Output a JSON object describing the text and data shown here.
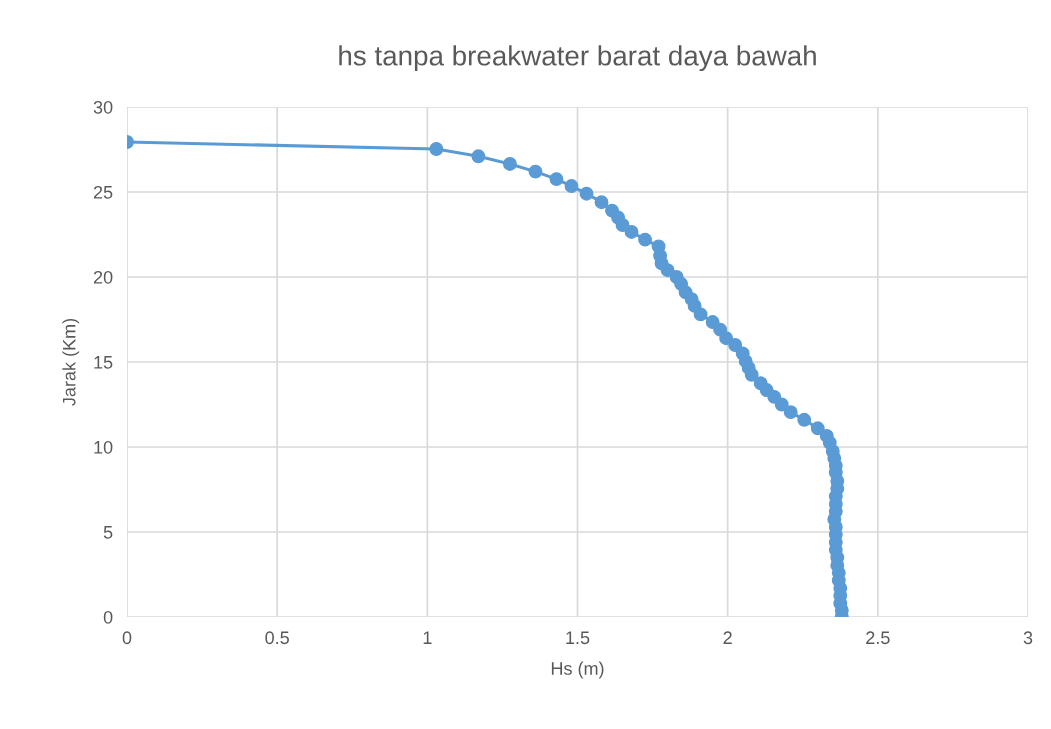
{
  "chart_data": {
    "type": "line",
    "title": "hs tanpa breakwater barat daya bawah",
    "xlabel": "Hs (m)",
    "ylabel": "Jarak (Km)",
    "xlim": [
      0,
      3
    ],
    "xticks": [
      0,
      0.5,
      1,
      1.5,
      2,
      2.5,
      3
    ],
    "ylim": [
      0,
      30
    ],
    "yticks": [
      0,
      5,
      10,
      15,
      20,
      25,
      30
    ],
    "grid": true,
    "marker": "circle",
    "line_style": "solid",
    "series": [
      {
        "color": "#5b9bd5",
        "x": [
          0,
          1.03,
          1.17,
          1.275,
          1.36,
          1.43,
          1.48,
          1.53,
          1.58,
          1.615,
          1.635,
          1.65,
          1.68,
          1.725,
          1.77,
          1.775,
          1.78,
          1.8,
          1.83,
          1.845,
          1.86,
          1.88,
          1.89,
          1.91,
          1.95,
          1.975,
          1.995,
          2.025,
          2.05,
          2.06,
          2.07,
          2.08,
          2.11,
          2.13,
          2.155,
          2.18,
          2.21,
          2.255,
          2.3,
          2.33,
          2.34,
          2.35,
          2.355,
          2.36,
          2.36,
          2.365,
          2.365,
          2.36,
          2.36,
          2.36,
          2.355,
          2.36,
          2.36,
          2.36,
          2.36,
          2.365,
          2.365,
          2.37,
          2.37,
          2.375,
          2.375,
          2.375,
          2.38,
          2.38
        ],
        "values": [
          27.94,
          27.53,
          27.1,
          26.65,
          26.2,
          25.76,
          25.35,
          24.9,
          24.4,
          23.9,
          23.5,
          23.06,
          22.65,
          22.2,
          21.8,
          21.25,
          20.8,
          20.4,
          20.0,
          19.6,
          19.1,
          18.7,
          18.3,
          17.8,
          17.35,
          16.9,
          16.4,
          16.0,
          15.5,
          15.05,
          14.65,
          14.25,
          13.75,
          13.35,
          12.95,
          12.5,
          12.05,
          11.6,
          11.1,
          10.65,
          10.25,
          9.75,
          9.35,
          8.9,
          8.5,
          8.0,
          7.55,
          7.1,
          6.65,
          6.2,
          5.75,
          5.3,
          4.85,
          4.4,
          3.95,
          3.5,
          3.05,
          2.6,
          2.15,
          1.7,
          1.25,
          0.8,
          0.4,
          0.05
        ]
      }
    ]
  }
}
